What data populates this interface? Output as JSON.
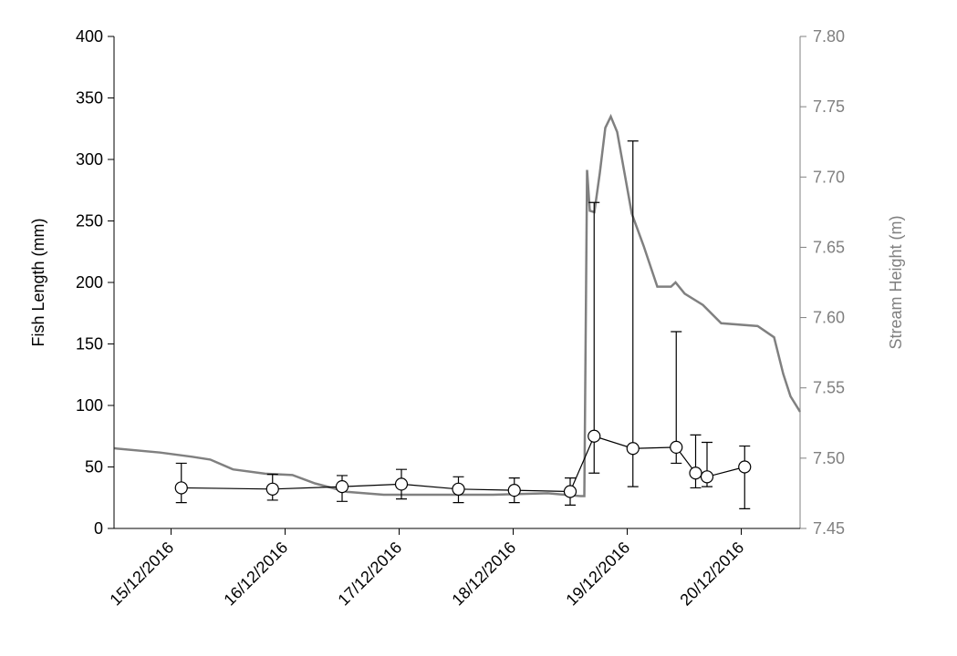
{
  "chart_data": {
    "type": "line",
    "ylabel": "Fish Length (mm)",
    "y2label": "Stream Height (m)",
    "xlim": [
      14.5,
      20.516
    ],
    "xticks": [
      {
        "value": 15,
        "label": "15/12/2016"
      },
      {
        "value": 16,
        "label": "16/12/2016"
      },
      {
        "value": 17,
        "label": "17/12/2016"
      },
      {
        "value": 18,
        "label": "18/12/2016"
      },
      {
        "value": 19,
        "label": "19/12/2016"
      },
      {
        "value": 20,
        "label": "20/12/2016"
      }
    ],
    "ylim": [
      0,
      400
    ],
    "yticks": [
      0,
      50,
      100,
      150,
      200,
      250,
      300,
      350,
      400
    ],
    "y2lim": [
      7.45,
      7.8
    ],
    "y2ticks": [
      7.45,
      {
        "value": 7.5,
        "label": "7.50"
      },
      7.55,
      {
        "value": 7.6,
        "label": "7.60"
      },
      7.65,
      {
        "value": 7.7,
        "label": "7.70"
      },
      7.75,
      {
        "value": 7.8,
        "label": "7.80"
      }
    ],
    "series": [
      {
        "color": "#000000",
        "axis": "y",
        "marker": "circle",
        "x": [
          15.09,
          15.89,
          16.5,
          17.02,
          17.52,
          18.01,
          18.5,
          18.71,
          19.05,
          19.43,
          19.6,
          19.7,
          20.03
        ],
        "values": [
          33,
          32,
          34,
          36,
          32,
          31,
          30,
          75,
          65,
          66,
          45,
          42,
          50
        ],
        "lower": [
          21,
          23,
          22,
          24,
          21,
          21,
          19,
          45,
          34,
          53,
          33,
          34,
          16
        ],
        "upper": [
          53,
          44,
          43,
          48,
          42,
          41,
          41,
          265,
          315,
          160,
          76,
          70,
          67
        ]
      },
      {
        "color": "#808080",
        "axis": "y2",
        "x": [
          14.504,
          14.904,
          15.184,
          15.344,
          15.544,
          15.824,
          16.064,
          16.264,
          16.544,
          16.864,
          17.344,
          17.824,
          18.304,
          18.592,
          18.624,
          18.648,
          18.672,
          18.712,
          18.76,
          18.808,
          18.856,
          18.912,
          18.976,
          19.04,
          19.144,
          19.264,
          19.384,
          19.424,
          19.504,
          19.664,
          19.824,
          20.144,
          20.288,
          20.368,
          20.432,
          20.516
        ],
        "values": [
          7.507,
          7.504,
          7.501,
          7.499,
          7.492,
          7.489,
          7.488,
          7.482,
          7.476,
          7.474,
          7.474,
          7.474,
          7.475,
          7.473,
          7.473,
          7.705,
          7.676,
          7.675,
          7.703,
          7.735,
          7.743,
          7.732,
          7.703,
          7.674,
          7.651,
          7.622,
          7.622,
          7.625,
          7.617,
          7.609,
          7.596,
          7.594,
          7.586,
          7.56,
          7.544,
          7.533
        ]
      }
    ]
  }
}
